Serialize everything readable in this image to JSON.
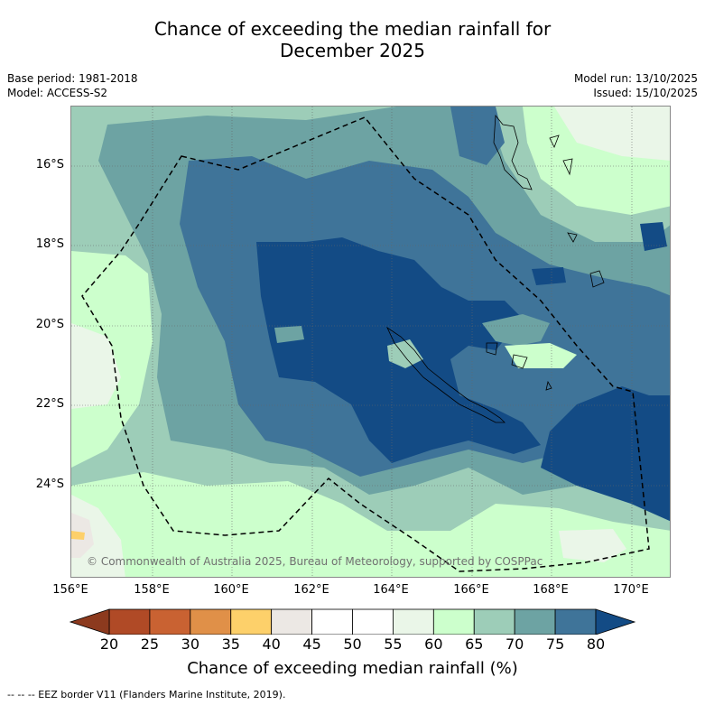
{
  "title_line1": "Chance of exceeding the median rainfall for",
  "title_line2": "December 2025",
  "base_period": "Base period: 1981-2018",
  "model": "Model: ACCESS-S2",
  "model_run": "Model run: 13/10/2025",
  "issued": "Issued: 15/10/2025",
  "copyright": "© Commonwealth of Australia 2025, Bureau of Meteorology, supported by COSPPac",
  "lat_labels": [
    "16°S",
    "18°S",
    "20°S",
    "22°S",
    "24°S"
  ],
  "lon_labels": [
    "156°E",
    "158°E",
    "160°E",
    "162°E",
    "164°E",
    "166°E",
    "168°E",
    "170°E"
  ],
  "colorbar": {
    "title": "Chance of exceeding median rainfall (%)",
    "ticks": [
      "20",
      "25",
      "30",
      "35",
      "40",
      "45",
      "50",
      "55",
      "60",
      "65",
      "70",
      "75",
      "80"
    ],
    "colors": [
      "#b04a26",
      "#c96232",
      "#e09048",
      "#fdd06a",
      "#ece8e4",
      "#ffffff",
      "#ffffff",
      "#eaf6e8",
      "#ccffcc",
      "#9dcdb8",
      "#6da3a3",
      "#3f7499"
    ],
    "low_extend_color": "#8c3a1e",
    "high_extend_color": "#134b85"
  },
  "footnote": "--  --  -- EEZ border V11 (Flanders Marine Institute, 2019).",
  "map_colors": {
    "c55": "#eaf6e8",
    "c60": "#ccffcc",
    "c65": "#9dcdb8",
    "c70": "#6da3a3",
    "c75": "#3f7499",
    "c80": "#134b85",
    "c40": "#ece8e4",
    "c35": "#fdd06a"
  }
}
